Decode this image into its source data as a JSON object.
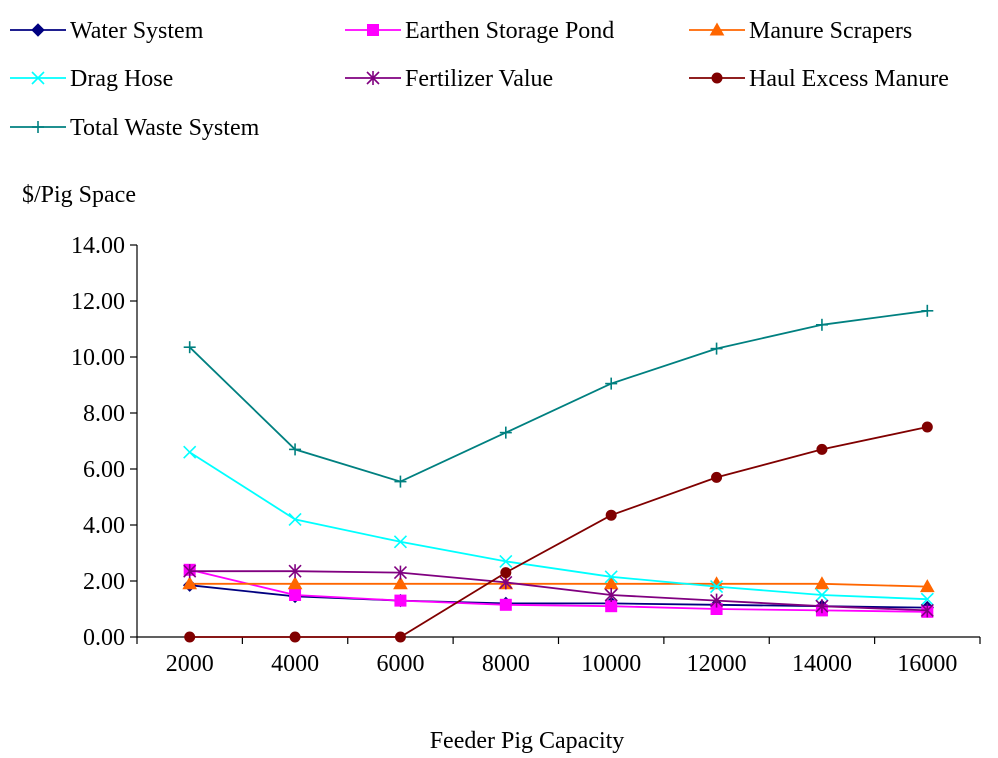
{
  "chart_data": {
    "type": "line",
    "title": "",
    "xlabel": "Feeder Pig Capacity",
    "ylabel": "$/Pig Space",
    "x": [
      2000,
      4000,
      6000,
      8000,
      10000,
      12000,
      14000,
      16000
    ],
    "x_tick_labels": [
      "2000",
      "4000",
      "6000",
      "8000",
      "10000",
      "12000",
      "14000",
      "16000"
    ],
    "y_tick_labels": [
      "0.00",
      "2.00",
      "4.00",
      "6.00",
      "8.00",
      "10.00",
      "12.00",
      "14.00"
    ],
    "ylim": [
      0,
      14
    ],
    "grid": false,
    "legend_position": "top",
    "series": [
      {
        "name": "Water System",
        "color": "#000080",
        "marker": "diamond",
        "values": [
          1.85,
          1.45,
          1.3,
          1.2,
          1.2,
          1.15,
          1.1,
          1.05
        ]
      },
      {
        "name": "Earthen Storage Pond",
        "color": "#ff00ff",
        "marker": "square",
        "values": [
          2.4,
          1.5,
          1.3,
          1.15,
          1.1,
          1.0,
          0.95,
          0.9
        ]
      },
      {
        "name": "Manure Scrapers",
        "color": "#ff6600",
        "marker": "triangle",
        "values": [
          1.9,
          1.9,
          1.9,
          1.9,
          1.9,
          1.9,
          1.9,
          1.8
        ]
      },
      {
        "name": "Drag Hose",
        "color": "#00ffff",
        "marker": "x",
        "values": [
          6.6,
          4.2,
          3.4,
          2.7,
          2.15,
          1.8,
          1.5,
          1.35
        ]
      },
      {
        "name": "Fertilizer Value",
        "color": "#800080",
        "marker": "asterisk",
        "values": [
          2.35,
          2.35,
          2.3,
          1.95,
          1.5,
          1.3,
          1.1,
          0.95
        ]
      },
      {
        "name": "Haul Excess Manure",
        "color": "#800000",
        "marker": "circle",
        "values": [
          0.0,
          0.0,
          0.0,
          2.3,
          4.35,
          5.7,
          6.7,
          7.5
        ]
      },
      {
        "name": "Total Waste System",
        "color": "#008080",
        "marker": "plus",
        "values": [
          10.35,
          6.7,
          5.55,
          7.3,
          9.05,
          10.3,
          11.15,
          11.65
        ]
      }
    ]
  }
}
